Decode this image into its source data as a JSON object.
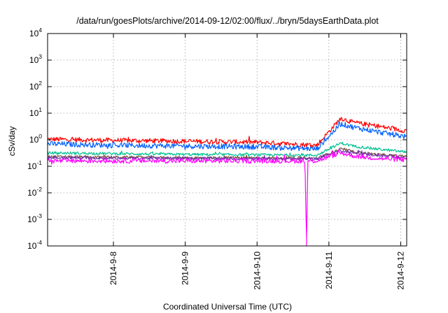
{
  "chart_data": {
    "type": "line",
    "title": "/data/run/goesPlots/archive/2014-09-12/02:00/flux/../bryn/5daysEarthData.plot",
    "xlabel": "Coordinated Universal Time (UTC)",
    "ylabel": "cSv/day",
    "yscale": "log",
    "ylim": [
      0.0001,
      10000
    ],
    "xlim": [
      "2014-09-07T02:00",
      "2014-09-12T02:00"
    ],
    "y_ticks": [
      {
        "base": "10",
        "exp": "-4",
        "value": 0.0001
      },
      {
        "base": "10",
        "exp": "-3",
        "value": 0.001
      },
      {
        "base": "10",
        "exp": "-2",
        "value": 0.01
      },
      {
        "base": "10",
        "exp": "-1",
        "value": 0.1
      },
      {
        "base": "10",
        "exp": "0",
        "value": 1
      },
      {
        "base": "10",
        "exp": "1",
        "value": 10
      },
      {
        "base": "10",
        "exp": "2",
        "value": 100
      },
      {
        "base": "10",
        "exp": "3",
        "value": 1000
      },
      {
        "base": "10",
        "exp": "4",
        "value": 10000
      }
    ],
    "x_ticks": [
      {
        "label": "2014-9-8",
        "value": "2014-09-08T00:00"
      },
      {
        "label": "2014-9-9",
        "value": "2014-09-09T00:00"
      },
      {
        "label": "2014-9-10",
        "value": "2014-09-10T00:00"
      },
      {
        "label": "2014-9-11",
        "value": "2014-09-11T00:00"
      },
      {
        "label": "2014-9-12",
        "value": "2014-09-12T00:00"
      }
    ],
    "grid": true,
    "legend": "none",
    "series": [
      {
        "color": "#ff0000",
        "noise": 0.09,
        "x": [
          "2014-09-07T02:00",
          "2014-09-08T00:00",
          "2014-09-09T00:00",
          "2014-09-10T00:00",
          "2014-09-10T20:00",
          "2014-09-11T04:00",
          "2014-09-11T08:00",
          "2014-09-11T16:00",
          "2014-09-12T00:00",
          "2014-09-12T02:00"
        ],
        "values": [
          1.05,
          0.95,
          0.88,
          0.8,
          0.62,
          6.5,
          4.5,
          3.3,
          2.3,
          2.2
        ]
      },
      {
        "color": "#0060ff",
        "noise": 0.1,
        "x": [
          "2014-09-07T02:00",
          "2014-09-08T00:00",
          "2014-09-09T00:00",
          "2014-09-10T00:00",
          "2014-09-10T20:00",
          "2014-09-11T04:00",
          "2014-09-11T08:00",
          "2014-09-11T16:00",
          "2014-09-12T00:00",
          "2014-09-12T02:00"
        ],
        "values": [
          0.7,
          0.62,
          0.58,
          0.54,
          0.45,
          4.0,
          3.0,
          2.0,
          1.4,
          1.3
        ]
      },
      {
        "color": "#00c090",
        "noise": 0.05,
        "x": [
          "2014-09-07T02:00",
          "2014-09-08T00:00",
          "2014-09-09T00:00",
          "2014-09-10T00:00",
          "2014-09-10T20:00",
          "2014-09-11T04:00",
          "2014-09-11T08:00",
          "2014-09-11T16:00",
          "2014-09-12T00:00",
          "2014-09-12T02:00"
        ],
        "values": [
          0.32,
          0.3,
          0.28,
          0.27,
          0.26,
          0.75,
          0.58,
          0.45,
          0.36,
          0.35
        ]
      },
      {
        "color": "#7a4a3a",
        "noise": 0.05,
        "x": [
          "2014-09-07T02:00",
          "2014-09-08T00:00",
          "2014-09-09T00:00",
          "2014-09-10T00:00",
          "2014-09-10T20:00",
          "2014-09-11T04:00",
          "2014-09-11T08:00",
          "2014-09-11T16:00",
          "2014-09-12T00:00",
          "2014-09-12T02:00"
        ],
        "values": [
          0.23,
          0.22,
          0.21,
          0.21,
          0.2,
          0.45,
          0.36,
          0.28,
          0.24,
          0.24
        ]
      },
      {
        "color": "#7030b0",
        "noise": 0.05,
        "x": [
          "2014-09-07T02:00",
          "2014-09-08T00:00",
          "2014-09-09T00:00",
          "2014-09-10T00:00",
          "2014-09-10T20:00",
          "2014-09-11T04:00",
          "2014-09-11T08:00",
          "2014-09-11T16:00",
          "2014-09-12T00:00",
          "2014-09-12T02:00"
        ],
        "values": [
          0.21,
          0.2,
          0.2,
          0.19,
          0.19,
          0.4,
          0.32,
          0.26,
          0.22,
          0.21
        ]
      },
      {
        "color": "#ff00ff",
        "noise": 0.09,
        "x": [
          "2014-09-07T02:00",
          "2014-09-08T00:00",
          "2014-09-09T00:00",
          "2014-09-10T00:00",
          "2014-09-10T16:00",
          "2014-09-10T16:30",
          "2014-09-10T17:00",
          "2014-09-10T20:00",
          "2014-09-11T04:00",
          "2014-09-11T08:00",
          "2014-09-11T16:00",
          "2014-09-12T00:00",
          "2014-09-12T02:00"
        ],
        "values": [
          0.16,
          0.16,
          0.16,
          0.16,
          0.16,
          0.0001,
          0.16,
          0.16,
          0.32,
          0.25,
          0.2,
          0.18,
          0.17
        ]
      }
    ]
  }
}
